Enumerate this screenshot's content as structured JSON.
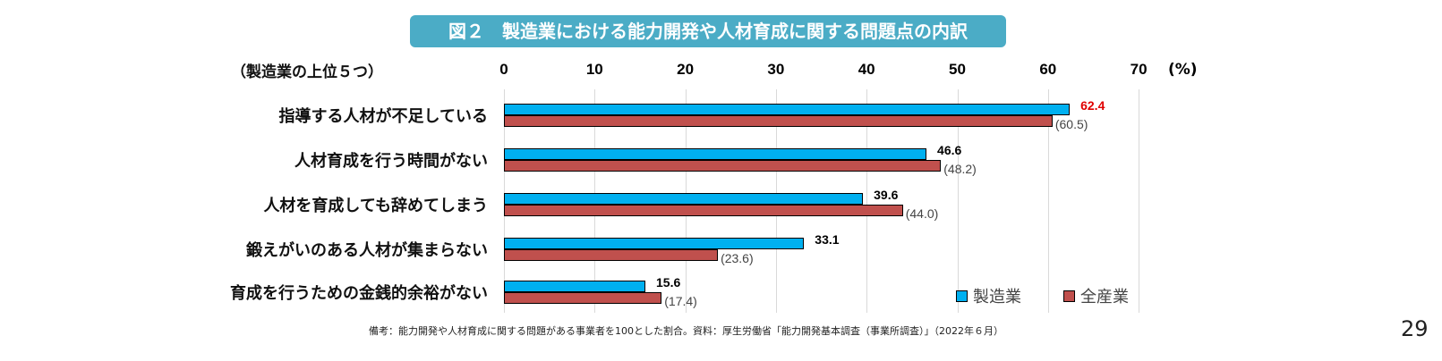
{
  "page_number": "29",
  "chart_data": {
    "type": "bar",
    "orientation": "horizontal",
    "title": "図２　製造業における能力開発や人材育成に関する問題点の内訳",
    "subtitle": "（製造業の上位５つ）",
    "unit": "(%)",
    "xlim": [
      0,
      70
    ],
    "ticks": [
      "0",
      "10",
      "20",
      "30",
      "40",
      "50",
      "60",
      "70"
    ],
    "grid": true,
    "legend_position": "bottom-right",
    "categories": [
      "指導する人材が不足している",
      "人材育成を行う時間がない",
      "人材を育成しても辞めてしまう",
      "鍛えがいのある人材が集まらない",
      "育成を行うための金銭的余裕がない"
    ],
    "series": [
      {
        "name": "製造業",
        "color": "#00b0f0",
        "values": [
          62.4,
          46.6,
          39.6,
          33.1,
          15.6
        ],
        "labels": [
          "62.4",
          "46.6",
          "39.6",
          "33.1",
          "15.6"
        ]
      },
      {
        "name": "全産業",
        "color": "#c0504d",
        "values": [
          60.5,
          48.2,
          44.0,
          23.6,
          17.4
        ],
        "labels": [
          "(60.5)",
          "(48.2)",
          "(44.0)",
          "(23.6)",
          "(17.4)"
        ]
      }
    ],
    "highlight_color": "#e00000",
    "note": "備考：能力開発や人材育成に関する問題がある事業者を100とした割合。資料：厚生労働省「能力開発基本調査（事業所調査）」（2022年６月）"
  }
}
